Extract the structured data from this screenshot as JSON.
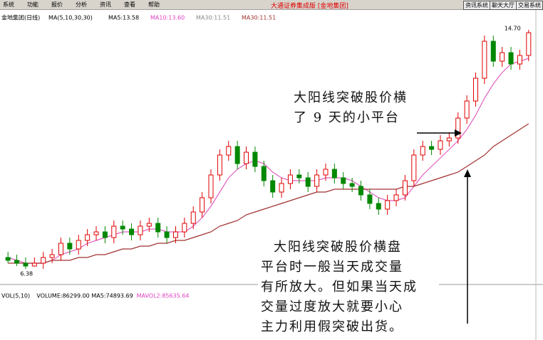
{
  "menu": [
    "系统",
    "功能",
    "报价",
    "分析",
    "资讯",
    "查看",
    "帮助"
  ],
  "window_title": "大通证券集成版 [金地集团]",
  "buttons": [
    "资讯系统",
    "聊天大厅",
    "交易系统"
  ],
  "info_line": [
    "金地集团(日线)",
    "MA(5,10,30,30)",
    "MA5:13.58",
    "MA10:13.60",
    "MA30:11.51",
    "MA30:11.51"
  ],
  "volume_line": [
    "VOL(5,10)",
    "VOLUME:86299.00",
    "MA5:74893.69",
    "MAVOL2:85635.64"
  ],
  "annotation_1": [
    "大阳线突破股价横",
    "了 9 天的小平台"
  ],
  "annotation_2": [
    "大阳线突破股价横盘",
    "平台时一般当天成交量",
    "有所放大。但如果当天成",
    "交量过度放大就要小心",
    "主力利用假突破出货。"
  ],
  "chart_data": {
    "type": "candlestick",
    "ylim": [
      6,
      15
    ],
    "open": [
      6.7,
      6.6,
      6.5,
      6.4,
      6.5,
      6.7,
      6.8,
      7.2,
      7.0,
      7.3,
      7.5,
      7.6,
      7.4,
      7.8,
      7.7,
      7.5,
      7.8,
      7.9,
      7.6,
      7.4,
      7.6,
      7.9,
      8.3,
      8.8,
      9.6,
      10.3,
      10.6,
      10.0,
      10.4,
      9.9,
      9.4,
      9.0,
      9.3,
      9.6,
      9.5,
      9.2,
      9.6,
      9.8,
      9.5,
      9.3,
      9.2,
      8.9,
      8.6,
      8.4,
      8.7,
      8.9,
      9.4,
      10.3,
      10.6,
      10.5,
      10.8,
      10.9,
      11.6,
      12.2,
      13.0,
      14.3,
      13.6,
      13.9,
      13.5,
      13.8
    ],
    "high": [
      6.9,
      6.8,
      6.7,
      6.7,
      6.9,
      7.0,
      7.4,
      7.4,
      7.5,
      7.7,
      7.8,
      7.8,
      8.0,
      8.0,
      7.9,
      8.0,
      8.1,
      8.1,
      7.8,
      7.8,
      8.1,
      8.5,
      9.0,
      9.8,
      10.5,
      10.8,
      10.8,
      10.6,
      10.6,
      10.1,
      9.6,
      9.5,
      9.8,
      9.8,
      9.7,
      9.8,
      10.0,
      10.0,
      9.7,
      9.5,
      9.4,
      9.1,
      8.8,
      8.9,
      9.1,
      9.6,
      10.5,
      10.8,
      10.8,
      11.0,
      11.1,
      11.8,
      12.4,
      13.2,
      14.5,
      14.5,
      14.1,
      14.1,
      14.0,
      14.7
    ],
    "low": [
      6.5,
      6.4,
      6.3,
      6.38,
      6.3,
      6.5,
      6.6,
      6.8,
      6.8,
      7.1,
      7.3,
      7.2,
      7.2,
      7.5,
      7.3,
      7.3,
      7.6,
      7.4,
      7.2,
      7.2,
      7.4,
      7.7,
      8.1,
      8.6,
      9.4,
      10.1,
      9.8,
      9.8,
      9.7,
      9.2,
      8.8,
      8.8,
      9.1,
      9.3,
      9.0,
      9.0,
      9.4,
      9.3,
      9.1,
      9.0,
      8.7,
      8.4,
      8.2,
      8.2,
      8.5,
      8.7,
      9.2,
      10.1,
      10.3,
      10.3,
      10.6,
      10.7,
      11.4,
      12.0,
      12.8,
      13.4,
      13.4,
      13.3,
      13.3,
      13.6
    ],
    "close": [
      6.6,
      6.5,
      6.4,
      6.5,
      6.7,
      6.8,
      7.2,
      7.0,
      7.3,
      7.5,
      7.6,
      7.4,
      7.8,
      7.7,
      7.5,
      7.8,
      7.9,
      7.6,
      7.4,
      7.6,
      7.9,
      8.3,
      8.8,
      9.6,
      10.3,
      10.6,
      10.0,
      10.4,
      9.9,
      9.4,
      9.0,
      9.3,
      9.6,
      9.5,
      9.2,
      9.6,
      9.8,
      9.5,
      9.3,
      9.2,
      8.9,
      8.6,
      8.4,
      8.7,
      8.9,
      9.4,
      10.3,
      10.6,
      10.5,
      10.8,
      10.9,
      11.6,
      12.2,
      13.0,
      14.3,
      13.6,
      13.9,
      13.5,
      13.8,
      14.6
    ],
    "up_color": "#e00000",
    "down_color": "#008800",
    "series": [
      {
        "color": "#e060c0",
        "values": [
          6.7,
          6.6,
          6.5,
          6.5,
          6.5,
          6.6,
          6.8,
          6.9,
          7.0,
          7.2,
          7.3,
          7.4,
          7.5,
          7.6,
          7.6,
          7.6,
          7.7,
          7.7,
          7.6,
          7.6,
          7.6,
          7.8,
          8.1,
          8.5,
          9.0,
          9.5,
          9.8,
          10.0,
          10.1,
          10.0,
          9.7,
          9.5,
          9.4,
          9.4,
          9.4,
          9.4,
          9.5,
          9.5,
          9.5,
          9.4,
          9.2,
          9.0,
          8.8,
          8.7,
          8.7,
          8.8,
          9.2,
          9.6,
          9.9,
          10.2,
          10.5,
          10.8,
          11.2,
          11.7,
          12.3,
          12.8,
          13.2,
          13.5,
          13.6,
          13.7
        ]
      },
      {
        "color": "#a03030",
        "values": [
          6.5,
          6.5,
          6.5,
          6.5,
          6.5,
          6.6,
          6.6,
          6.6,
          6.7,
          6.7,
          6.8,
          6.8,
          6.9,
          7.0,
          7.0,
          7.1,
          7.1,
          7.2,
          7.2,
          7.3,
          7.3,
          7.4,
          7.5,
          7.6,
          7.8,
          7.9,
          8.0,
          8.2,
          8.3,
          8.4,
          8.5,
          8.6,
          8.7,
          8.8,
          8.9,
          9.0,
          9.0,
          9.1,
          9.1,
          9.1,
          9.1,
          9.1,
          9.1,
          9.1,
          9.1,
          9.2,
          9.2,
          9.3,
          9.4,
          9.5,
          9.6,
          9.7,
          9.9,
          10.1,
          10.3,
          10.6,
          10.8,
          11.0,
          11.2,
          11.4
        ]
      }
    ],
    "annotations": [
      {
        "text": "14.70",
        "index": 59
      },
      {
        "text": "6.38",
        "index": 3
      }
    ]
  }
}
